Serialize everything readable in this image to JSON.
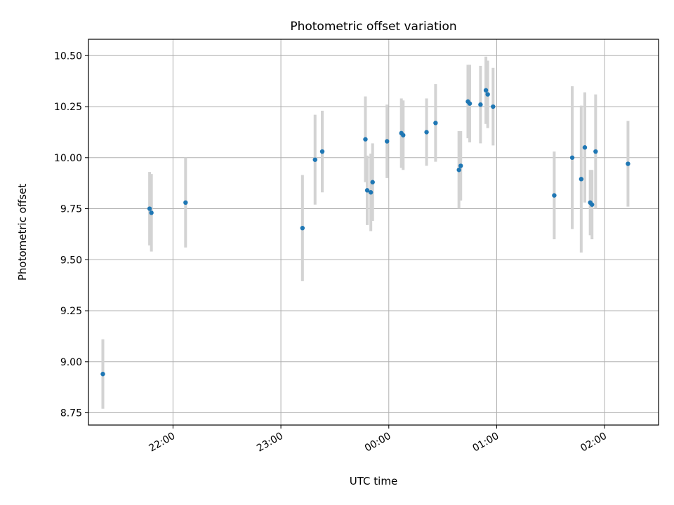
{
  "chart_data": {
    "type": "scatter",
    "title": "Photometric offset variation",
    "xlabel": "UTC time",
    "ylabel": "Photometric offset",
    "ylim": [
      8.69,
      10.58
    ],
    "y_ticks": [
      8.75,
      9.0,
      9.25,
      9.5,
      9.75,
      10.0,
      10.25,
      10.5
    ],
    "y_tick_labels": [
      "8.75",
      "9.00",
      "9.25",
      "9.50",
      "9.75",
      "10.00",
      "10.25",
      "10.50"
    ],
    "x_ticks": [
      "22:00",
      "23:00",
      "00:00",
      "01:00",
      "02:00"
    ],
    "x_tick_labels": [
      "22:00",
      "23:00",
      "00:00",
      "01:00",
      "02:00"
    ],
    "xlim": [
      "21:13",
      "02:30"
    ],
    "grid": true,
    "colors": {
      "marker": "#1f77b4",
      "errorbar": "#d3d3d3",
      "grid": "#b0b0b0"
    },
    "points": [
      {
        "x": "21:21",
        "y": 8.94,
        "yerr": 0.17
      },
      {
        "x": "21:47",
        "y": 9.75,
        "yerr": 0.18
      },
      {
        "x": "21:48",
        "y": 9.73,
        "yerr": 0.19
      },
      {
        "x": "22:07",
        "y": 9.78,
        "yerr": 0.22
      },
      {
        "x": "23:12",
        "y": 9.655,
        "yerr": 0.26
      },
      {
        "x": "23:19",
        "y": 9.99,
        "yerr": 0.22
      },
      {
        "x": "23:23",
        "y": 10.03,
        "yerr": 0.2
      },
      {
        "x": "23:47",
        "y": 10.09,
        "yerr": 0.21
      },
      {
        "x": "23:48",
        "y": 9.84,
        "yerr": 0.17
      },
      {
        "x": "23:50",
        "y": 9.83,
        "yerr": 0.19
      },
      {
        "x": "23:51",
        "y": 9.88,
        "yerr": 0.19
      },
      {
        "x": "23:59",
        "y": 10.08,
        "yerr": 0.18
      },
      {
        "x": "00:07",
        "y": 10.12,
        "yerr": 0.17
      },
      {
        "x": "00:08",
        "y": 10.11,
        "yerr": 0.17
      },
      {
        "x": "00:21",
        "y": 10.125,
        "yerr": 0.165
      },
      {
        "x": "00:26",
        "y": 10.17,
        "yerr": 0.19
      },
      {
        "x": "00:39",
        "y": 9.94,
        "yerr": 0.19
      },
      {
        "x": "00:40",
        "y": 9.96,
        "yerr": 0.17
      },
      {
        "x": "00:44",
        "y": 10.275,
        "yerr": 0.18
      },
      {
        "x": "00:45",
        "y": 10.265,
        "yerr": 0.19
      },
      {
        "x": "00:51",
        "y": 10.26,
        "yerr": 0.19
      },
      {
        "x": "00:54",
        "y": 10.33,
        "yerr": 0.165
      },
      {
        "x": "00:55",
        "y": 10.31,
        "yerr": 0.165
      },
      {
        "x": "00:58",
        "y": 10.25,
        "yerr": 0.19
      },
      {
        "x": "01:32",
        "y": 9.815,
        "yerr": 0.215
      },
      {
        "x": "01:42",
        "y": 10.0,
        "yerr": 0.35
      },
      {
        "x": "01:47",
        "y": 9.895,
        "yerr": 0.36
      },
      {
        "x": "01:49",
        "y": 10.05,
        "yerr": 0.27
      },
      {
        "x": "01:52",
        "y": 9.78,
        "yerr": 0.16
      },
      {
        "x": "01:53",
        "y": 9.77,
        "yerr": 0.17
      },
      {
        "x": "01:55",
        "y": 10.03,
        "yerr": 0.28
      },
      {
        "x": "02:13",
        "y": 9.97,
        "yerr": 0.21
      }
    ]
  }
}
